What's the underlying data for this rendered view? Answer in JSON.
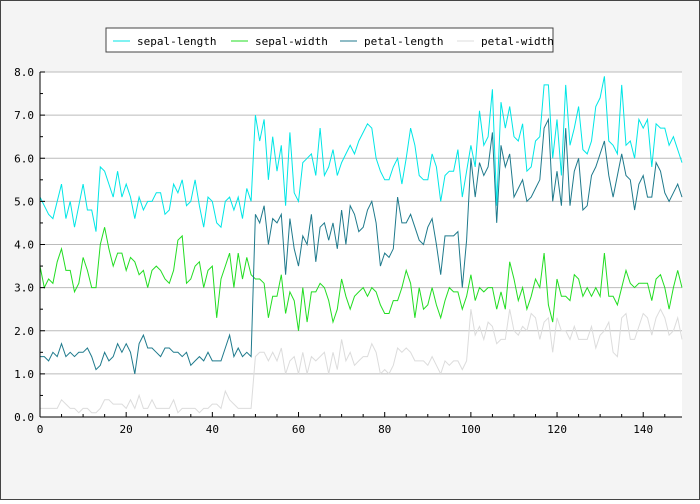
{
  "chart_data": {
    "type": "line",
    "title": "",
    "xlabel": "",
    "ylabel": "",
    "xlim": [
      0,
      149
    ],
    "ylim": [
      0,
      8
    ],
    "xticks": [
      0,
      20,
      40,
      60,
      80,
      100,
      120,
      140
    ],
    "yticks": [
      0.0,
      1.0,
      2.0,
      3.0,
      4.0,
      5.0,
      6.0,
      7.0,
      8.0
    ],
    "grid": "horizontal",
    "legend_position": "top",
    "series": [
      {
        "name": "sepal-length",
        "color": "#00e6e6",
        "values": [
          5.1,
          4.9,
          4.7,
          4.6,
          5.0,
          5.4,
          4.6,
          5.0,
          4.4,
          4.9,
          5.4,
          4.8,
          4.8,
          4.3,
          5.8,
          5.7,
          5.4,
          5.1,
          5.7,
          5.1,
          5.4,
          5.1,
          4.6,
          5.1,
          4.8,
          5.0,
          5.0,
          5.2,
          5.2,
          4.7,
          4.8,
          5.4,
          5.2,
          5.5,
          4.9,
          5.0,
          5.5,
          4.9,
          4.4,
          5.1,
          5.0,
          4.5,
          4.4,
          5.0,
          5.1,
          4.8,
          5.1,
          4.6,
          5.3,
          5.0,
          7.0,
          6.4,
          6.9,
          5.5,
          6.5,
          5.7,
          6.3,
          4.9,
          6.6,
          5.2,
          5.0,
          5.9,
          6.0,
          6.1,
          5.6,
          6.7,
          5.6,
          5.8,
          6.2,
          5.6,
          5.9,
          6.1,
          6.3,
          6.1,
          6.4,
          6.6,
          6.8,
          6.7,
          6.0,
          5.7,
          5.5,
          5.5,
          5.8,
          6.0,
          5.4,
          6.0,
          6.7,
          6.3,
          5.6,
          5.5,
          5.5,
          6.1,
          5.8,
          5.0,
          5.6,
          5.7,
          5.7,
          6.2,
          5.1,
          5.7,
          6.3,
          5.8,
          7.1,
          6.3,
          6.5,
          7.6,
          4.9,
          7.3,
          6.7,
          7.2,
          6.5,
          6.4,
          6.8,
          5.7,
          5.8,
          6.4,
          6.5,
          7.7,
          7.7,
          6.0,
          6.9,
          5.6,
          7.7,
          6.3,
          6.7,
          7.2,
          6.2,
          6.1,
          6.4,
          7.2,
          7.4,
          7.9,
          6.4,
          6.3,
          6.1,
          7.7,
          6.3,
          6.4,
          6.0,
          6.9,
          6.7,
          6.9,
          5.8,
          6.8,
          6.7,
          6.7,
          6.3,
          6.5,
          6.2,
          5.9
        ]
      },
      {
        "name": "sepal-width",
        "color": "#22dd22",
        "values": [
          3.5,
          3.0,
          3.2,
          3.1,
          3.6,
          3.9,
          3.4,
          3.4,
          2.9,
          3.1,
          3.7,
          3.4,
          3.0,
          3.0,
          4.0,
          4.4,
          3.9,
          3.5,
          3.8,
          3.8,
          3.4,
          3.7,
          3.6,
          3.3,
          3.4,
          3.0,
          3.4,
          3.5,
          3.4,
          3.2,
          3.1,
          3.4,
          4.1,
          4.2,
          3.1,
          3.2,
          3.5,
          3.6,
          3.0,
          3.4,
          3.5,
          2.3,
          3.2,
          3.5,
          3.8,
          3.0,
          3.8,
          3.2,
          3.7,
          3.3,
          3.2,
          3.2,
          3.1,
          2.3,
          2.8,
          2.8,
          3.3,
          2.4,
          2.9,
          2.7,
          2.0,
          3.0,
          2.2,
          2.9,
          2.9,
          3.1,
          3.0,
          2.7,
          2.2,
          2.5,
          3.2,
          2.8,
          2.5,
          2.8,
          2.9,
          3.0,
          2.8,
          3.0,
          2.9,
          2.6,
          2.4,
          2.4,
          2.7,
          2.7,
          3.0,
          3.4,
          3.1,
          2.3,
          3.0,
          2.5,
          2.6,
          3.0,
          2.6,
          2.3,
          2.7,
          3.0,
          2.9,
          2.9,
          2.5,
          2.8,
          3.3,
          2.7,
          3.0,
          2.9,
          3.0,
          3.0,
          2.5,
          2.9,
          2.5,
          3.6,
          3.2,
          2.7,
          3.0,
          2.5,
          2.8,
          3.2,
          3.0,
          3.8,
          2.6,
          2.2,
          3.2,
          2.8,
          2.8,
          2.7,
          3.3,
          3.2,
          2.8,
          3.0,
          2.8,
          3.0,
          2.8,
          3.8,
          2.8,
          2.8,
          2.6,
          3.0,
          3.4,
          3.1,
          3.0,
          3.1,
          3.1,
          3.1,
          2.7,
          3.2,
          3.3,
          3.0,
          2.5,
          3.0,
          3.4,
          3.0
        ]
      },
      {
        "name": "petal-length",
        "color": "#1f7a8c",
        "values": [
          1.4,
          1.4,
          1.3,
          1.5,
          1.4,
          1.7,
          1.4,
          1.5,
          1.4,
          1.5,
          1.5,
          1.6,
          1.4,
          1.1,
          1.2,
          1.5,
          1.3,
          1.4,
          1.7,
          1.5,
          1.7,
          1.5,
          1.0,
          1.7,
          1.9,
          1.6,
          1.6,
          1.5,
          1.4,
          1.6,
          1.6,
          1.5,
          1.5,
          1.4,
          1.5,
          1.2,
          1.3,
          1.4,
          1.3,
          1.5,
          1.3,
          1.3,
          1.3,
          1.6,
          1.9,
          1.4,
          1.6,
          1.4,
          1.5,
          1.4,
          4.7,
          4.5,
          4.9,
          4.0,
          4.6,
          4.5,
          4.7,
          3.3,
          4.6,
          3.9,
          3.5,
          4.2,
          4.0,
          4.7,
          3.6,
          4.4,
          4.5,
          4.1,
          4.5,
          3.9,
          4.8,
          4.0,
          4.9,
          4.7,
          4.3,
          4.4,
          4.8,
          5.0,
          4.5,
          3.5,
          3.8,
          3.7,
          3.9,
          5.1,
          4.5,
          4.5,
          4.7,
          4.4,
          4.1,
          4.0,
          4.4,
          4.6,
          4.0,
          3.3,
          4.2,
          4.2,
          4.2,
          4.3,
          3.0,
          4.1,
          6.0,
          5.1,
          5.9,
          5.6,
          5.8,
          6.6,
          4.5,
          6.3,
          5.8,
          6.1,
          5.1,
          5.3,
          5.5,
          5.0,
          5.1,
          5.3,
          5.5,
          6.7,
          6.9,
          5.0,
          5.7,
          4.9,
          6.7,
          4.9,
          5.7,
          6.0,
          4.8,
          4.9,
          5.6,
          5.8,
          6.1,
          6.4,
          5.6,
          5.1,
          5.6,
          6.1,
          5.6,
          5.5,
          4.8,
          5.4,
          5.6,
          5.1,
          5.1,
          5.9,
          5.7,
          5.2,
          5.0,
          5.2,
          5.4,
          5.1
        ]
      },
      {
        "name": "petal-width",
        "color": "#dcdcdc",
        "values": [
          0.2,
          0.2,
          0.2,
          0.2,
          0.2,
          0.4,
          0.3,
          0.2,
          0.2,
          0.1,
          0.2,
          0.2,
          0.1,
          0.1,
          0.2,
          0.4,
          0.4,
          0.3,
          0.3,
          0.3,
          0.2,
          0.4,
          0.2,
          0.5,
          0.2,
          0.2,
          0.4,
          0.2,
          0.2,
          0.2,
          0.2,
          0.4,
          0.1,
          0.2,
          0.2,
          0.2,
          0.2,
          0.1,
          0.2,
          0.2,
          0.3,
          0.3,
          0.2,
          0.6,
          0.4,
          0.3,
          0.2,
          0.2,
          0.2,
          0.2,
          1.4,
          1.5,
          1.5,
          1.3,
          1.5,
          1.3,
          1.6,
          1.0,
          1.3,
          1.4,
          1.0,
          1.5,
          1.0,
          1.4,
          1.3,
          1.4,
          1.5,
          1.0,
          1.5,
          1.1,
          1.8,
          1.3,
          1.5,
          1.2,
          1.3,
          1.4,
          1.4,
          1.7,
          1.5,
          1.0,
          1.1,
          1.0,
          1.2,
          1.6,
          1.5,
          1.6,
          1.5,
          1.3,
          1.3,
          1.3,
          1.2,
          1.4,
          1.2,
          1.0,
          1.3,
          1.2,
          1.3,
          1.3,
          1.1,
          1.3,
          2.5,
          1.9,
          2.1,
          1.8,
          2.2,
          2.1,
          1.7,
          1.8,
          1.8,
          2.5,
          2.0,
          1.9,
          2.1,
          2.0,
          2.4,
          2.3,
          1.8,
          2.2,
          2.3,
          1.5,
          2.3,
          2.0,
          2.0,
          1.8,
          2.1,
          1.8,
          1.8,
          1.8,
          2.1,
          1.6,
          1.9,
          2.0,
          2.2,
          1.5,
          1.4,
          2.3,
          2.4,
          1.8,
          1.8,
          2.1,
          2.4,
          2.3,
          1.9,
          2.3,
          2.5,
          2.3,
          1.9,
          2.0,
          2.3,
          1.8
        ]
      }
    ]
  }
}
